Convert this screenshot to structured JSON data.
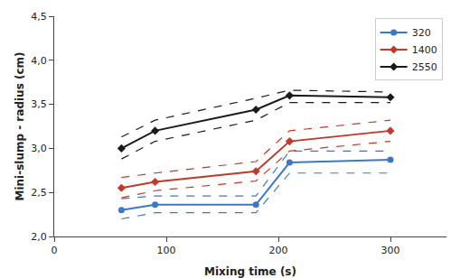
{
  "chart_data": {
    "type": "line",
    "x": [
      60,
      90,
      180,
      210,
      300
    ],
    "series": [
      {
        "name": "320",
        "color": "#3A78C9",
        "marker": "circle",
        "line_style": "solid",
        "values": [
          2.3,
          2.36,
          2.36,
          2.84,
          2.87
        ],
        "upper": [
          2.43,
          2.46,
          2.46,
          2.97,
          2.97
        ],
        "lower": [
          2.2,
          2.27,
          2.27,
          2.72,
          2.72
        ]
      },
      {
        "name": "1400",
        "color": "#C0392B",
        "marker": "diamond",
        "line_style": "solid",
        "values": [
          2.55,
          2.62,
          2.74,
          3.08,
          3.2
        ],
        "upper": [
          2.67,
          2.72,
          2.85,
          3.2,
          3.32
        ],
        "lower": [
          2.44,
          2.52,
          2.63,
          2.97,
          3.08
        ]
      },
      {
        "name": "2550",
        "color": "#1a1a1a",
        "marker": "diamond",
        "line_style": "solid",
        "values": [
          3.0,
          3.2,
          3.44,
          3.6,
          3.58
        ],
        "upper": [
          3.13,
          3.32,
          3.57,
          3.66,
          3.64
        ],
        "lower": [
          2.88,
          3.08,
          3.32,
          3.52,
          3.52
        ]
      }
    ],
    "xlabel": "Mixing time (s)",
    "ylabel": "Mini-slump - radius (cm)",
    "xlim": [
      0,
      350
    ],
    "ylim": [
      2.0,
      4.5
    ],
    "xticks": [
      0,
      100,
      200,
      300
    ],
    "yticks": [
      {
        "value": 2.0,
        "label": "2,0"
      },
      {
        "value": 2.5,
        "label": "2,5"
      },
      {
        "value": 3.0,
        "label": "3,0"
      },
      {
        "value": 3.5,
        "label": "3,5"
      },
      {
        "value": 4.0,
        "label": "4,0"
      },
      {
        "value": 4.5,
        "label": "4,5"
      }
    ],
    "grid": false,
    "legend": "upper right"
  }
}
